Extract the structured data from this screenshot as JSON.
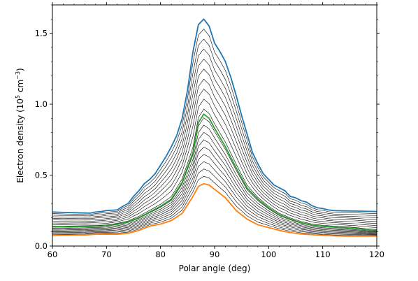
{
  "chart_data": {
    "type": "line",
    "xlabel": "Polar angle (deg)",
    "ylabel": {
      "prefix": "Electron density (10",
      "sup1": "5",
      "mid": " cm",
      "sup2": "−3",
      "suffix": ")"
    },
    "xlim": [
      60,
      120
    ],
    "ylim": [
      0,
      1.7
    ],
    "xticks": [
      60,
      70,
      80,
      90,
      100,
      110,
      120
    ],
    "xtick_labels": [
      "60",
      "70",
      "80",
      "90",
      "100",
      "110",
      "120"
    ],
    "yticks": [
      0.0,
      0.5,
      1.0,
      1.5
    ],
    "ytick_labels": [
      "0.0",
      "0.5",
      "1.0",
      "1.5"
    ],
    "x_minor_step": 2,
    "y_minor_step": 0.1,
    "grid": false,
    "top_series": {
      "color": "#1f77b4",
      "points": [
        [
          60,
          0.24
        ],
        [
          62,
          0.237
        ],
        [
          64,
          0.235
        ],
        [
          66,
          0.233
        ],
        [
          67,
          0.232
        ],
        [
          68,
          0.24
        ],
        [
          69,
          0.243
        ],
        [
          70,
          0.25
        ],
        [
          72,
          0.255
        ],
        [
          73,
          0.28
        ],
        [
          74,
          0.3
        ],
        [
          75,
          0.35
        ],
        [
          76,
          0.39
        ],
        [
          77,
          0.44
        ],
        [
          78,
          0.47
        ],
        [
          79,
          0.51
        ],
        [
          80,
          0.57
        ],
        [
          81,
          0.63
        ],
        [
          82,
          0.7
        ],
        [
          83,
          0.78
        ],
        [
          84,
          0.9
        ],
        [
          85,
          1.1
        ],
        [
          86,
          1.37
        ],
        [
          87,
          1.56
        ],
        [
          88,
          1.6
        ],
        [
          89,
          1.55
        ],
        [
          90,
          1.43
        ],
        [
          91,
          1.37
        ],
        [
          92,
          1.3
        ],
        [
          93,
          1.19
        ],
        [
          94,
          1.06
        ],
        [
          95,
          0.92
        ],
        [
          96,
          0.79
        ],
        [
          97,
          0.66
        ],
        [
          98,
          0.58
        ],
        [
          99,
          0.51
        ],
        [
          100,
          0.47
        ],
        [
          101,
          0.43
        ],
        [
          102,
          0.41
        ],
        [
          103,
          0.39
        ],
        [
          104,
          0.35
        ],
        [
          105,
          0.34
        ],
        [
          106,
          0.32
        ],
        [
          107,
          0.31
        ],
        [
          108,
          0.285
        ],
        [
          109,
          0.27
        ],
        [
          110,
          0.265
        ],
        [
          111,
          0.255
        ],
        [
          112,
          0.25
        ],
        [
          114,
          0.248
        ],
        [
          116,
          0.247
        ],
        [
          118,
          0.245
        ],
        [
          120,
          0.243
        ]
      ]
    },
    "middle_series": {
      "color": "#2ca02c",
      "points": [
        [
          60,
          0.135
        ],
        [
          62,
          0.135
        ],
        [
          64,
          0.137
        ],
        [
          66,
          0.138
        ],
        [
          68,
          0.14
        ],
        [
          70,
          0.143
        ],
        [
          72,
          0.155
        ],
        [
          74,
          0.17
        ],
        [
          76,
          0.2
        ],
        [
          78,
          0.24
        ],
        [
          80,
          0.28
        ],
        [
          82,
          0.33
        ],
        [
          84,
          0.45
        ],
        [
          86,
          0.66
        ],
        [
          87,
          0.87
        ],
        [
          88,
          0.93
        ],
        [
          89,
          0.9
        ],
        [
          90,
          0.83
        ],
        [
          92,
          0.7
        ],
        [
          94,
          0.55
        ],
        [
          96,
          0.41
        ],
        [
          98,
          0.33
        ],
        [
          100,
          0.27
        ],
        [
          102,
          0.22
        ],
        [
          104,
          0.19
        ],
        [
          106,
          0.165
        ],
        [
          108,
          0.148
        ],
        [
          110,
          0.14
        ],
        [
          112,
          0.135
        ],
        [
          114,
          0.13
        ],
        [
          116,
          0.125
        ],
        [
          118,
          0.115
        ],
        [
          120,
          0.11
        ]
      ]
    },
    "bottom_series": {
      "color": "#ff7f0e",
      "points": [
        [
          60,
          0.075
        ],
        [
          62,
          0.076
        ],
        [
          64,
          0.077
        ],
        [
          66,
          0.078
        ],
        [
          68,
          0.083
        ],
        [
          70,
          0.084
        ],
        [
          72,
          0.083
        ],
        [
          74,
          0.09
        ],
        [
          76,
          0.11
        ],
        [
          78,
          0.14
        ],
        [
          80,
          0.155
        ],
        [
          82,
          0.18
        ],
        [
          84,
          0.23
        ],
        [
          86,
          0.35
        ],
        [
          87,
          0.42
        ],
        [
          88,
          0.44
        ],
        [
          89,
          0.43
        ],
        [
          90,
          0.4
        ],
        [
          92,
          0.34
        ],
        [
          94,
          0.25
        ],
        [
          96,
          0.19
        ],
        [
          98,
          0.15
        ],
        [
          100,
          0.13
        ],
        [
          102,
          0.11
        ],
        [
          104,
          0.095
        ],
        [
          106,
          0.085
        ],
        [
          108,
          0.08
        ],
        [
          110,
          0.075
        ],
        [
          112,
          0.072
        ],
        [
          114,
          0.07
        ],
        [
          116,
          0.07
        ],
        [
          118,
          0.07
        ],
        [
          120,
          0.07
        ]
      ]
    },
    "intermediate_line_color": "#000000",
    "intermediate_line_count": 18
  }
}
